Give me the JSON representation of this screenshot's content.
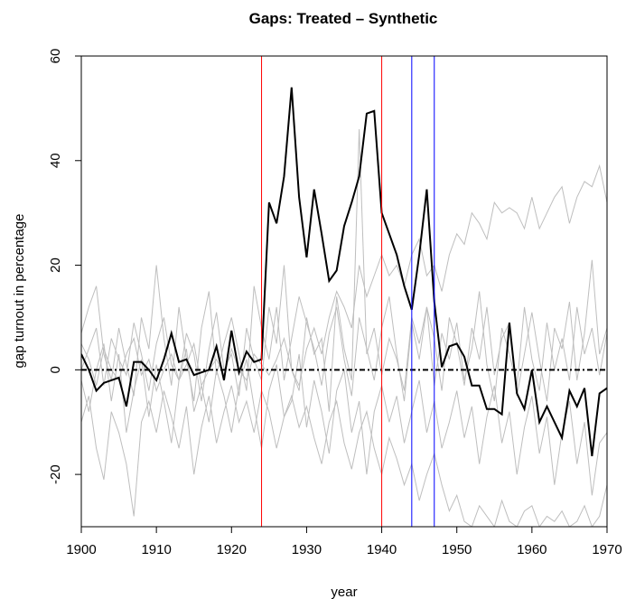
{
  "chart_data": {
    "type": "line",
    "title": "Gaps: Treated – Synthetic",
    "xlabel": "year",
    "ylabel": "gap turnout in percentage",
    "xlim": [
      1900,
      1970
    ],
    "xticks": [
      1900,
      1910,
      1920,
      1930,
      1940,
      1950,
      1960,
      1970
    ],
    "ylim": [
      -30,
      60
    ],
    "yticks": [
      -20,
      0,
      20,
      40,
      60
    ],
    "x": [
      1900,
      1901,
      1902,
      1903,
      1904,
      1905,
      1906,
      1907,
      1908,
      1909,
      1910,
      1911,
      1912,
      1913,
      1914,
      1915,
      1916,
      1917,
      1918,
      1919,
      1920,
      1921,
      1922,
      1923,
      1924,
      1925,
      1926,
      1927,
      1928,
      1929,
      1930,
      1931,
      1932,
      1933,
      1934,
      1935,
      1936,
      1937,
      1938,
      1939,
      1940,
      1941,
      1942,
      1943,
      1944,
      1945,
      1946,
      1947,
      1948,
      1949,
      1950,
      1951,
      1952,
      1953,
      1954,
      1955,
      1956,
      1957,
      1958,
      1959,
      1960,
      1961,
      1962,
      1963,
      1964,
      1965,
      1966,
      1967,
      1968,
      1969,
      1970
    ],
    "series": [
      {
        "color": "#bebebe",
        "values": [
          5,
          2,
          -3,
          4,
          0,
          -2,
          3,
          6,
          -1,
          2,
          -4,
          0,
          3,
          -2,
          1,
          5,
          -3,
          0,
          2,
          -1,
          4,
          0,
          -2,
          3,
          1,
          -1,
          2,
          6,
          0,
          -3,
          4,
          8,
          3,
          10,
          15,
          12,
          8,
          20,
          14,
          18,
          22,
          18,
          20,
          16,
          22,
          25,
          18,
          20,
          15,
          22,
          26,
          24,
          30,
          28,
          25,
          32,
          30,
          31,
          30,
          27,
          33,
          27,
          30,
          33,
          35,
          28,
          33,
          36,
          35,
          39,
          32
        ]
      },
      {
        "color": "#bebebe",
        "values": [
          -10,
          -5,
          -15,
          -21,
          -8,
          -12,
          -18,
          -28,
          -10,
          -6,
          -12,
          -4,
          -9,
          -15,
          -7,
          -20,
          -11,
          -5,
          -14,
          -8,
          -3,
          -10,
          -6,
          -12,
          -4,
          -8,
          -15,
          -9,
          -5,
          -11,
          -7,
          -13,
          -18,
          -10,
          -6,
          -14,
          -19,
          -12,
          -8,
          -15,
          -20,
          -13,
          -17,
          -22,
          -18,
          -25,
          -20,
          -16,
          -22,
          -27,
          -24,
          -29,
          -30,
          -26,
          -28,
          -30,
          -25,
          -29,
          -30,
          -27,
          -26,
          -30,
          -28,
          -29,
          -27,
          -30,
          -29,
          -26,
          -30,
          -28,
          -22
        ]
      },
      {
        "color": "#bebebe",
        "values": [
          7,
          12,
          16,
          3,
          -2,
          8,
          1,
          -5,
          10,
          4,
          20,
          6,
          -3,
          12,
          2,
          -6,
          8,
          15,
          -1,
          5,
          10,
          3,
          -4,
          16,
          8,
          2,
          12,
          -2,
          6,
          14,
          9,
          4,
          -3,
          7,
          12,
          2,
          -5,
          10,
          4,
          -2,
          8,
          14,
          3,
          -6,
          9,
          2,
          12,
          6,
          -4,
          10,
          5,
          -3,
          8,
          2,
          12,
          -1,
          6,
          9,
          -5,
          3,
          11,
          2,
          -6,
          8,
          4,
          13,
          -2,
          7,
          21,
          3,
          8
        ]
      },
      {
        "color": "#bebebe",
        "values": [
          -2,
          -8,
          0,
          5,
          -6,
          3,
          -12,
          -4,
          2,
          -9,
          1,
          -6,
          -14,
          -2,
          4,
          -8,
          -3,
          -10,
          0,
          -5,
          -12,
          -3,
          2,
          -7,
          -15,
          -4,
          1,
          -9,
          -6,
          3,
          -11,
          -2,
          -8,
          -16,
          -4,
          0,
          -12,
          -6,
          -20,
          -8,
          -3,
          -10,
          -5,
          -14,
          -8,
          -2,
          -12,
          -6,
          -15,
          -10,
          -4,
          -13,
          -7,
          -18,
          -9,
          -3,
          -14,
          -8,
          -20,
          -11,
          -5,
          -16,
          -9,
          -22,
          -12,
          -6,
          -18,
          -10,
          -24,
          -14,
          -12
        ]
      },
      {
        "color": "#bebebe",
        "values": [
          0,
          4,
          8,
          -3,
          6,
          2,
          -1,
          9,
          3,
          -4,
          5,
          10,
          1,
          -2,
          7,
          3,
          -6,
          4,
          11,
          0,
          3,
          -5,
          8,
          2,
          -2,
          12,
          5,
          20,
          0,
          -4,
          10,
          3,
          6,
          -8,
          14,
          4,
          -2,
          46,
          3,
          8,
          -1,
          6,
          2,
          -4,
          10,
          5,
          12,
          -3,
          7,
          2,
          9,
          -2,
          4,
          15,
          1,
          -6,
          8,
          3,
          -3,
          12,
          2,
          -4,
          9,
          0,
          6,
          -2,
          12,
          3,
          8,
          -1,
          7
        ]
      },
      {
        "color": "#000000",
        "values": [
          3,
          0,
          -4,
          -2.5,
          -2,
          -1.5,
          -7,
          1.5,
          1.5,
          0,
          -2,
          2,
          7,
          1.5,
          2,
          -1,
          -0.5,
          0,
          4.5,
          -2,
          7.5,
          -0.5,
          3.5,
          1.5,
          2,
          32,
          28,
          37,
          54,
          33,
          21.5,
          34.5,
          26,
          17,
          19,
          27.5,
          32,
          37,
          49,
          49.5,
          30,
          26,
          22,
          16,
          11.5,
          22,
          34.5,
          13,
          0.5,
          4.5,
          5,
          2.5,
          -3,
          -3,
          -7.5,
          -7.5,
          -8.5,
          9,
          -4.5,
          -7.5,
          0,
          -10,
          -7,
          -10,
          -13,
          -4,
          -7,
          -3.5,
          -16.5,
          -4.5,
          -3.5
        ]
      }
    ],
    "vlines": [
      {
        "value": 1924,
        "color": "#ff0000"
      },
      {
        "value": 1940,
        "color": "#ff0000"
      },
      {
        "value": 1944,
        "color": "#0000ff"
      },
      {
        "value": 1947,
        "color": "#0000ff"
      }
    ],
    "hline": 0
  }
}
